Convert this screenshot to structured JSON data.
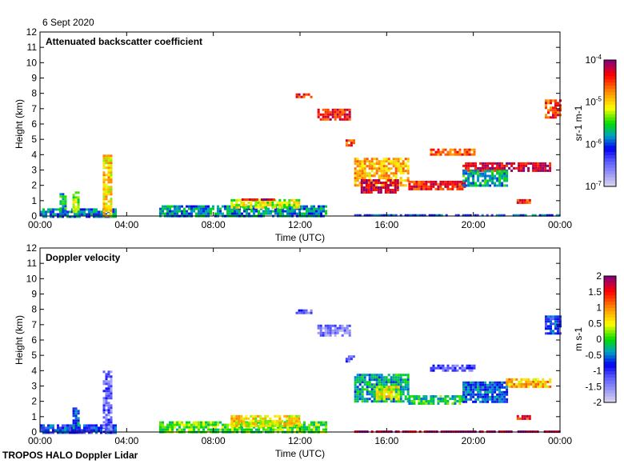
{
  "date_label": "6 Sept 2020",
  "footer": "TROPOS HALO Doppler Lidar",
  "chart_data": [
    {
      "type": "heatmap",
      "title": "Attenuated backscatter coefficient",
      "xlabel": "Time (UTC)",
      "ylabel": "Height (km)",
      "xlim": [
        0,
        24
      ],
      "ylim": [
        0,
        12
      ],
      "x_ticks": [
        "00:00",
        "04:00",
        "08:00",
        "12:00",
        "16:00",
        "20:00",
        "00:00"
      ],
      "y_ticks": [
        "0",
        "1",
        "2",
        "3",
        "4",
        "5",
        "6",
        "7",
        "8",
        "9",
        "10",
        "11",
        "12"
      ],
      "colorbar": {
        "label": "sr-1 m-1",
        "scale": "log",
        "range_log10": [
          -7,
          -4
        ],
        "ticks": [
          "10-7",
          "10-6",
          "10-5",
          "10-4"
        ]
      },
      "features": [
        {
          "t": [
            5.5,
            13.2
          ],
          "h": [
            0.0,
            0.7
          ],
          "v": -5.8
        },
        {
          "t": [
            8.8,
            12.0
          ],
          "h": [
            0.6,
            1.1
          ],
          "v": -5.2
        },
        {
          "t": [
            9.3,
            11.0
          ],
          "h": [
            1.0,
            1.15
          ],
          "v": -4.2
        },
        {
          "t": [
            0.0,
            3.5
          ],
          "h": [
            0.0,
            0.5
          ],
          "v": -5.9
        },
        {
          "t": [
            1.5,
            1.8
          ],
          "h": [
            0.2,
            1.6
          ],
          "v": -5.3
        },
        {
          "t": [
            2.9,
            3.3
          ],
          "h": [
            0.0,
            4.0
          ],
          "v": -5.0
        },
        {
          "t": [
            0.9,
            1.2
          ],
          "h": [
            0.3,
            1.5
          ],
          "v": -5.7
        },
        {
          "t": [
            11.8,
            12.5
          ],
          "h": [
            7.8,
            8.0
          ],
          "v": -4.4
        },
        {
          "t": [
            12.8,
            14.3
          ],
          "h": [
            6.3,
            7.0
          ],
          "v": -4.4
        },
        {
          "t": [
            14.1,
            14.5
          ],
          "h": [
            4.6,
            5.0
          ],
          "v": -4.5
        },
        {
          "t": [
            14.5,
            17.0
          ],
          "h": [
            2.0,
            3.8
          ],
          "v": -4.9
        },
        {
          "t": [
            14.8,
            16.5
          ],
          "h": [
            1.6,
            2.4
          ],
          "v": -4.2
        },
        {
          "t": [
            17.0,
            19.6
          ],
          "h": [
            1.8,
            2.3
          ],
          "v": -4.4
        },
        {
          "t": [
            18.0,
            20.0
          ],
          "h": [
            4.0,
            4.4
          ],
          "v": -4.6
        },
        {
          "t": [
            19.5,
            23.5
          ],
          "h": [
            3.0,
            3.5
          ],
          "v": -4.2
        },
        {
          "t": [
            19.5,
            21.5
          ],
          "h": [
            2.0,
            3.0
          ],
          "v": -5.7
        },
        {
          "t": [
            22.0,
            22.6
          ],
          "h": [
            0.9,
            1.1
          ],
          "v": -4.5
        },
        {
          "t": [
            23.3,
            24.0
          ],
          "h": [
            6.5,
            7.6
          ],
          "v": -4.5
        },
        {
          "t": [
            14.5,
            24.0
          ],
          "h": [
            0.0,
            0.12
          ],
          "v": -6.0
        }
      ]
    },
    {
      "type": "heatmap",
      "title": "Doppler velocity",
      "xlabel": "Time (UTC)",
      "ylabel": "Height (km)",
      "xlim": [
        0,
        24
      ],
      "ylim": [
        0,
        12
      ],
      "x_ticks": [
        "00:00",
        "04:00",
        "08:00",
        "12:00",
        "16:00",
        "20:00",
        "00:00"
      ],
      "y_ticks": [
        "0",
        "1",
        "2",
        "3",
        "4",
        "5",
        "6",
        "7",
        "8",
        "9",
        "10",
        "11",
        "12"
      ],
      "colorbar": {
        "label": "m s-1",
        "scale": "linear",
        "range": [
          -2,
          2
        ],
        "ticks": [
          "-2",
          "-1.5",
          "-1",
          "-0.5",
          "0",
          "0.5",
          "1",
          "1.5",
          "2"
        ]
      },
      "features": [
        {
          "t": [
            5.5,
            13.2
          ],
          "h": [
            0.0,
            0.7
          ],
          "v": 0.1
        },
        {
          "t": [
            8.8,
            12.0
          ],
          "h": [
            0.4,
            1.1
          ],
          "v": 0.6
        },
        {
          "t": [
            0.0,
            3.5
          ],
          "h": [
            0.0,
            0.5
          ],
          "v": -0.8
        },
        {
          "t": [
            1.5,
            1.8
          ],
          "h": [
            0.2,
            1.6
          ],
          "v": -0.6
        },
        {
          "t": [
            2.9,
            3.3
          ],
          "h": [
            0.0,
            4.0
          ],
          "v": -1.3
        },
        {
          "t": [
            11.8,
            12.5
          ],
          "h": [
            7.8,
            8.0
          ],
          "v": -1.2
        },
        {
          "t": [
            12.8,
            14.3
          ],
          "h": [
            6.3,
            7.0
          ],
          "v": -1.4
        },
        {
          "t": [
            14.1,
            14.5
          ],
          "h": [
            4.6,
            5.0
          ],
          "v": -1.3
        },
        {
          "t": [
            14.5,
            17.0
          ],
          "h": [
            2.0,
            3.8
          ],
          "v": -0.3
        },
        {
          "t": [
            15.5,
            16.5
          ],
          "h": [
            2.2,
            3.0
          ],
          "v": 0.5
        },
        {
          "t": [
            17.0,
            19.6
          ],
          "h": [
            1.8,
            2.4
          ],
          "v": -0.1
        },
        {
          "t": [
            18.0,
            20.0
          ],
          "h": [
            4.0,
            4.4
          ],
          "v": -1.2
        },
        {
          "t": [
            19.5,
            21.5
          ],
          "h": [
            2.0,
            3.3
          ],
          "v": -0.6
        },
        {
          "t": [
            21.5,
            23.5
          ],
          "h": [
            3.0,
            3.5
          ],
          "v": 0.8
        },
        {
          "t": [
            22.0,
            22.6
          ],
          "h": [
            0.9,
            1.1
          ],
          "v": 1.5
        },
        {
          "t": [
            23.3,
            24.0
          ],
          "h": [
            6.5,
            7.6
          ],
          "v": -0.8
        },
        {
          "t": [
            14.5,
            24.0
          ],
          "h": [
            0.0,
            0.1
          ],
          "v": 1.9
        }
      ]
    }
  ]
}
